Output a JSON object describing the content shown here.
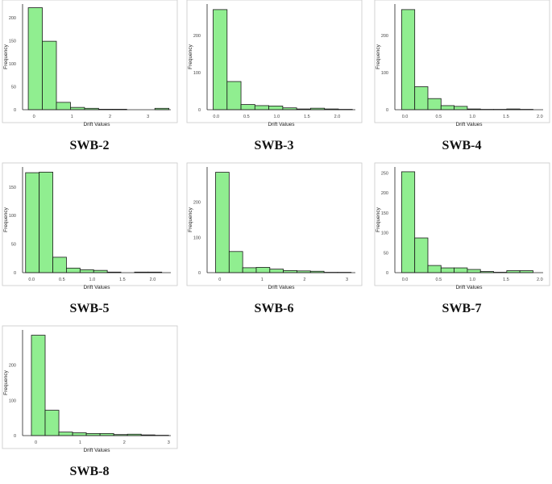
{
  "chart_data": [
    {
      "type": "bar",
      "title": "SWB-2",
      "xlabel": "Drift Values",
      "ylabel": "Frequency",
      "xlim": [
        -0.3,
        3.6
      ],
      "ylim": [
        0,
        230
      ],
      "xticks": [
        {
          "v": 0,
          "label": "0"
        },
        {
          "v": 1,
          "label": "1"
        },
        {
          "v": 2,
          "label": "2"
        },
        {
          "v": 3,
          "label": "3"
        }
      ],
      "yticks": [
        0,
        50,
        100,
        150,
        200
      ],
      "bin_edges": [
        -0.15,
        0.22,
        0.59,
        0.96,
        1.33,
        1.7,
        2.07,
        2.44,
        2.81,
        3.18,
        3.55
      ],
      "values": [
        222,
        149,
        16,
        5,
        3,
        1,
        1,
        0,
        0,
        3
      ]
    },
    {
      "type": "bar",
      "title": "SWB-3",
      "xlabel": "Drift Values",
      "ylabel": "Frequency",
      "xlim": [
        -0.15,
        2.3
      ],
      "ylim": [
        0,
        285
      ],
      "xticks": [
        {
          "v": 0,
          "label": "0.0"
        },
        {
          "v": 0.5,
          "label": "0.5"
        },
        {
          "v": 1.0,
          "label": "1.0"
        },
        {
          "v": 1.5,
          "label": "1.5"
        },
        {
          "v": 2.0,
          "label": "2.0"
        }
      ],
      "yticks": [
        0,
        100,
        200
      ],
      "bin_edges": [
        -0.05,
        0.18,
        0.41,
        0.64,
        0.87,
        1.1,
        1.33,
        1.56,
        1.79,
        2.02,
        2.25
      ],
      "values": [
        270,
        76,
        14,
        11,
        10,
        5,
        2,
        4,
        2,
        1
      ]
    },
    {
      "type": "bar",
      "title": "SWB-4",
      "xlabel": "Drift Values",
      "ylabel": "Frequency",
      "xlim": [
        -0.15,
        2.05
      ],
      "ylim": [
        0,
        285
      ],
      "xticks": [
        {
          "v": 0,
          "label": "0.0"
        },
        {
          "v": 0.5,
          "label": "0.5"
        },
        {
          "v": 1.0,
          "label": "1.0"
        },
        {
          "v": 1.5,
          "label": "1.5"
        },
        {
          "v": 2.0,
          "label": "2.0"
        }
      ],
      "yticks": [
        0,
        100,
        200
      ],
      "bin_edges": [
        -0.05,
        0.145,
        0.34,
        0.535,
        0.73,
        0.925,
        1.12,
        1.315,
        1.51,
        1.705,
        1.9
      ],
      "values": [
        270,
        62,
        30,
        11,
        9,
        2,
        1,
        1,
        2,
        1
      ]
    },
    {
      "type": "bar",
      "title": "SWB-5",
      "xlabel": "Drift Values",
      "ylabel": "Frequency",
      "xlim": [
        -0.15,
        2.3
      ],
      "ylim": [
        0,
        185
      ],
      "xticks": [
        {
          "v": 0,
          "label": "0.0"
        },
        {
          "v": 0.5,
          "label": "0.5"
        },
        {
          "v": 1.0,
          "label": "1.0"
        },
        {
          "v": 1.5,
          "label": "1.5"
        },
        {
          "v": 2.0,
          "label": "2.0"
        }
      ],
      "yticks": [
        0,
        50,
        100,
        150
      ],
      "bin_edges": [
        -0.1,
        0.125,
        0.35,
        0.575,
        0.8,
        1.025,
        1.25,
        1.475,
        1.7,
        1.925,
        2.15
      ],
      "values": [
        175,
        176,
        27,
        8,
        5,
        4,
        1,
        0,
        1,
        1
      ]
    },
    {
      "type": "bar",
      "title": "SWB-6",
      "xlabel": "Drift Values",
      "ylabel": "Frequency",
      "xlim": [
        -0.3,
        3.2
      ],
      "ylim": [
        0,
        300
      ],
      "xticks": [
        {
          "v": 0,
          "label": "0"
        },
        {
          "v": 1,
          "label": "1"
        },
        {
          "v": 2,
          "label": "2"
        },
        {
          "v": 3,
          "label": "3"
        }
      ],
      "yticks": [
        0,
        100,
        200
      ],
      "bin_edges": [
        -0.1,
        0.22,
        0.54,
        0.86,
        1.18,
        1.5,
        1.82,
        2.14,
        2.46,
        2.78,
        3.1
      ],
      "values": [
        285,
        60,
        14,
        15,
        10,
        6,
        5,
        4,
        1,
        1
      ]
    },
    {
      "type": "bar",
      "title": "SWB-7",
      "xlabel": "Drift Values",
      "ylabel": "Frequency",
      "xlim": [
        -0.15,
        2.05
      ],
      "ylim": [
        0,
        265
      ],
      "xticks": [
        {
          "v": 0,
          "label": "0.0"
        },
        {
          "v": 0.5,
          "label": "0.5"
        },
        {
          "v": 1.0,
          "label": "1.0"
        },
        {
          "v": 1.5,
          "label": "1.5"
        },
        {
          "v": 2.0,
          "label": "2.0"
        }
      ],
      "yticks": [
        0,
        50,
        100,
        150,
        200,
        250
      ],
      "bin_edges": [
        -0.05,
        0.145,
        0.34,
        0.535,
        0.73,
        0.925,
        1.12,
        1.315,
        1.51,
        1.705,
        1.9
      ],
      "values": [
        253,
        87,
        18,
        12,
        12,
        8,
        3,
        1,
        5,
        5
      ]
    },
    {
      "type": "bar",
      "title": "SWB-8",
      "xlabel": "Drift Values",
      "ylabel": "Frequency",
      "xlim": [
        -0.3,
        3.05
      ],
      "ylim": [
        0,
        300
      ],
      "xticks": [
        {
          "v": 0,
          "label": "0"
        },
        {
          "v": 1,
          "label": "1"
        },
        {
          "v": 2,
          "label": "2"
        },
        {
          "v": 3,
          "label": "3"
        }
      ],
      "yticks": [
        0,
        100,
        200
      ],
      "bin_edges": [
        -0.1,
        0.21,
        0.52,
        0.83,
        1.14,
        1.45,
        1.76,
        2.07,
        2.38,
        2.69,
        3.0
      ],
      "values": [
        285,
        72,
        10,
        8,
        6,
        6,
        3,
        4,
        2,
        1
      ]
    }
  ]
}
